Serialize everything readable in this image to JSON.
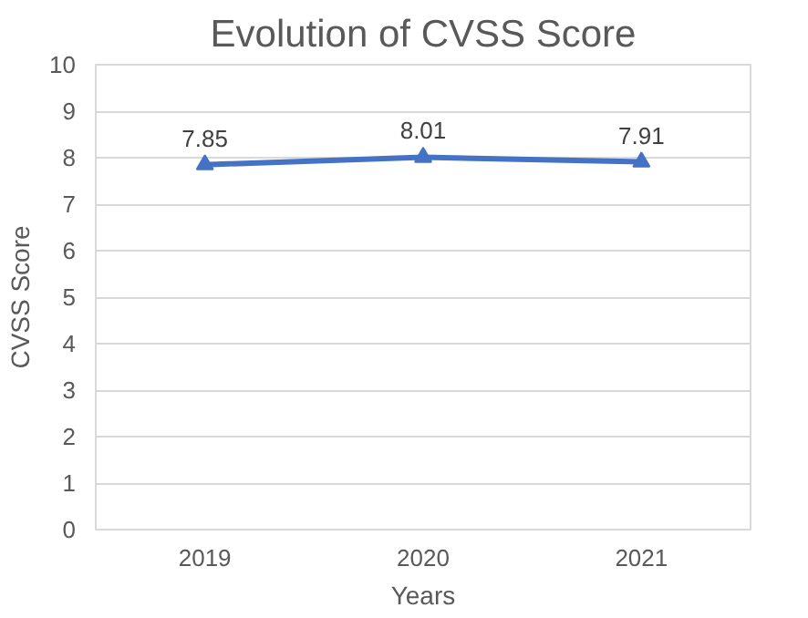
{
  "chart_data": {
    "type": "line",
    "title": "Evolution of CVSS Score",
    "xlabel": "Years",
    "ylabel": "CVSS Score",
    "categories": [
      "2019",
      "2020",
      "2021"
    ],
    "series": [
      {
        "color": "#4472c4",
        "values": [
          7.85,
          8.01,
          7.91
        ]
      }
    ],
    "ylim": [
      0,
      10
    ],
    "yticks": [
      0,
      1,
      2,
      3,
      4,
      5,
      6,
      7,
      8,
      9,
      10
    ],
    "grid": "y",
    "marker": "triangle",
    "line_style": "solid",
    "data_labels": true
  }
}
